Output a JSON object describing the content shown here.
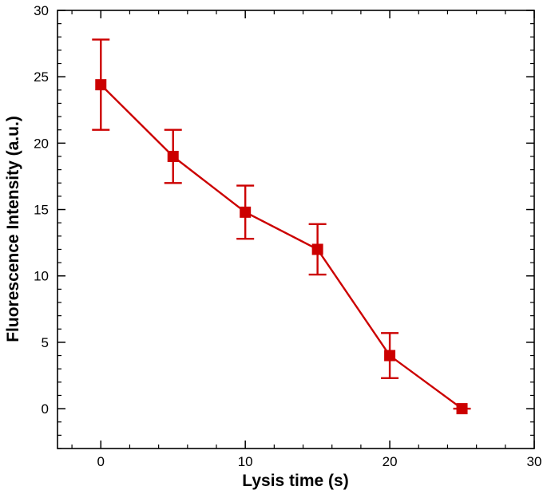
{
  "chart_data": {
    "type": "line",
    "title": "",
    "xlabel": "Lysis time (s)",
    "ylabel": "Fluorescence Intensity (a.u.)",
    "xlim": [
      -3,
      30
    ],
    "ylim": [
      -3,
      30
    ],
    "x_ticks": [
      0,
      10,
      20,
      30
    ],
    "y_ticks": [
      0,
      5,
      10,
      15,
      20,
      25,
      30
    ],
    "x_ticks_display": [
      "0",
      "10",
      "20",
      "30"
    ],
    "y_ticks_display": [
      "0",
      "5",
      "10",
      "15",
      "20",
      "25",
      "30"
    ],
    "grid": false,
    "legend": "none",
    "series": [
      {
        "color": "#cc0000",
        "marker": "square",
        "x": [
          0,
          5,
          10,
          15,
          20,
          25
        ],
        "y": [
          24.4,
          19.0,
          14.8,
          12.0,
          4.0,
          0.0
        ],
        "error": [
          3.4,
          2.0,
          2.0,
          1.9,
          1.7,
          0.0
        ]
      }
    ]
  }
}
